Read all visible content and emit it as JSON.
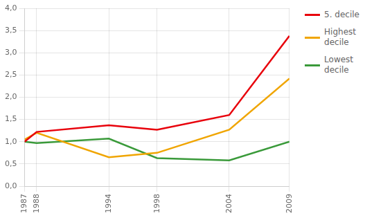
{
  "chart_data": {
    "type": "line",
    "x": [
      1987,
      1988,
      1994,
      1998,
      2004,
      2009
    ],
    "series": [
      {
        "name": "5. decile",
        "color": "#e8000b",
        "values": [
          1.0,
          1.22,
          1.37,
          1.27,
          1.6,
          3.38
        ]
      },
      {
        "name": "Highest\ndecile",
        "color": "#f0a500",
        "values": [
          1.05,
          1.2,
          0.65,
          0.75,
          1.27,
          2.42
        ]
      },
      {
        "name": "Lowest\ndecile",
        "color": "#3a9a3a",
        "values": [
          1.0,
          0.97,
          1.07,
          0.63,
          0.58,
          1.0
        ]
      }
    ],
    "xlim": [
      1987,
      2009
    ],
    "xticks": [
      1987,
      1988,
      1994,
      1998,
      2004,
      2009
    ],
    "ylim": [
      0.0,
      4.0
    ],
    "yticks": [
      {
        "value": 0.0,
        "label": "0,0"
      },
      {
        "value": 0.5,
        "label": "0,5"
      },
      {
        "value": 1.0,
        "label": "1,0"
      },
      {
        "value": 1.5,
        "label": "1,5"
      },
      {
        "value": 2.0,
        "label": "2,0"
      },
      {
        "value": 2.5,
        "label": "2,5"
      },
      {
        "value": 3.0,
        "label": "3,0"
      },
      {
        "value": 3.5,
        "label": "3,5"
      },
      {
        "value": 4.0,
        "label": "4,0"
      }
    ],
    "grid": true,
    "legend": "right"
  }
}
